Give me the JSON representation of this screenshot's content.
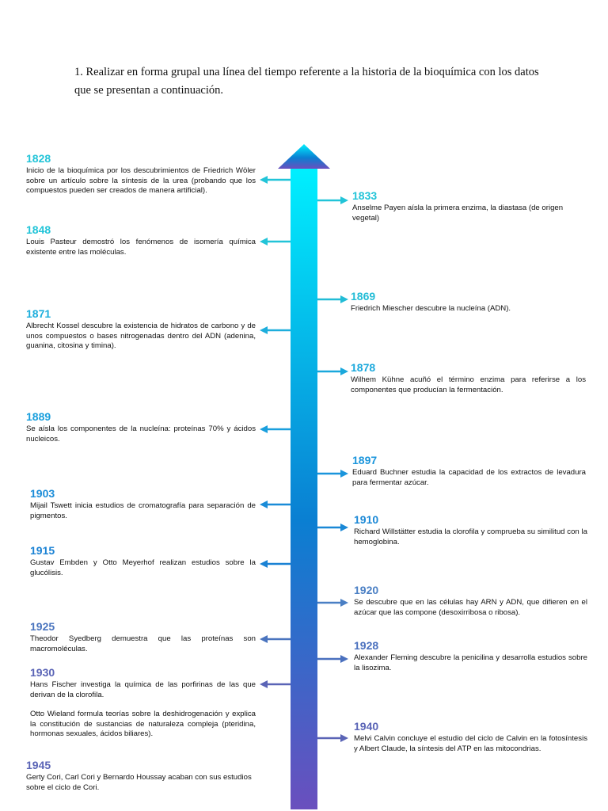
{
  "instructions": {
    "line1": "1. Realizar en forma grupal una línea del tiempo referente a la historia de la bioquímica con los datos",
    "line2": "que se presentan a continuación."
  },
  "events": {
    "e1828": {
      "year": "1828",
      "text": "Inicio de la bioquímica por los descubrimientos de Friedrich Wöler sobre un artículo sobre la síntesis de la urea (probando que los compuestos pueden ser creados de manera artificial).",
      "color": "#22c4d8"
    },
    "e1833": {
      "year": "1833",
      "text": "Anselme Payen aísla la primera enzima, la diastasa (de origen vegetal)",
      "color": "#22c4d8"
    },
    "e1848": {
      "year": "1848",
      "text": "Louis Pasteur demostró los fenómenos de isomería química existente entre las moléculas.",
      "color": "#22c4d8"
    },
    "e1869": {
      "year": "1869",
      "text": "Friedrich Miescher descubre la nucleína (ADN).",
      "color": "#22bcd6"
    },
    "e1871": {
      "year": "1871",
      "text": "Albrecht Kossel descubre la existencia de hidratos de carbono y de unos compuestos o bases nitrogenadas dentro del ADN (adenina, guanina, citosina y timina).",
      "color": "#1eaedc"
    },
    "e1878": {
      "year": "1878",
      "text": "Wilhem Kühne acuñó el término enzima para referirse a los componentes que producían la fermentación.",
      "color": "#1aa8dc"
    },
    "e1889": {
      "year": "1889",
      "text": "Se aísla los componentes de la nucleína: proteínas 70% y ácidos nucleicos.",
      "color": "#1a9fdd"
    },
    "e1897": {
      "year": "1897",
      "text": "Eduard Buchner estudia la capacidad de los extractos de levadura para fermentar azúcar.",
      "color": "#1a95dc"
    },
    "e1903": {
      "year": "1903",
      "text": "Mijail Tswett inicia estudios de cromatografía para separación de pigmentos.",
      "color": "#1a8cd8"
    },
    "e1910": {
      "year": "1910",
      "text": "Richard Willstätter estudia la clorofila y comprueba su similitud con la hemoglobina.",
      "color": "#1a88d6"
    },
    "e1915": {
      "year": "1915",
      "text": "Gustav Embden y Otto Meyerhof realizan estudios sobre la glucólisis.",
      "color": "#1a82d4"
    },
    "e1920": {
      "year": "1920",
      "text": "Se descubre que en las células hay ARN y ADN, que difieren en el azúcar que las compone (desoxirribosa o ribosa).",
      "color": "#4a7fc4"
    },
    "e1925": {
      "year": "1925",
      "text": "Theodor Syedberg demuestra que las proteínas son macromoléculas.",
      "color": "#4a74be"
    },
    "e1928": {
      "year": "1928",
      "text": "Alexander Fleming descubre la penicilina y desarrolla estudios sobre la lisozima.",
      "color": "#4a70be"
    },
    "e1930": {
      "year": "1930",
      "text": "Hans Fischer investiga la química de las porfirinas de las que derivan de la clorofila.",
      "color": "#5a64b6"
    },
    "e1930b": {
      "text": "Otto Wieland formula teorías sobre la deshidrogenación y explica la constitución de sustancias de naturaleza compleja (pteridina, hormonas sexuales, ácidos biliares)."
    },
    "e1940": {
      "year": "1940",
      "text": "Melvi Calvin concluye el estudio del ciclo de Calvin en la fotosíntesis y Albert Claude, la síntesis del ATP en las mitocondrias.",
      "color": "#5a64b6"
    },
    "e1945": {
      "year": "1945",
      "text": "Gerty Cori, Carl Cori y Bernardo Houssay acaban con sus estudios sobre el ciclo de Cori.",
      "color": "#5a64b6"
    }
  },
  "axis": {
    "gradient_top": "#00f0ff",
    "gradient_mid": "#0a7fd2",
    "gradient_bottom": "#6a4fbe"
  }
}
